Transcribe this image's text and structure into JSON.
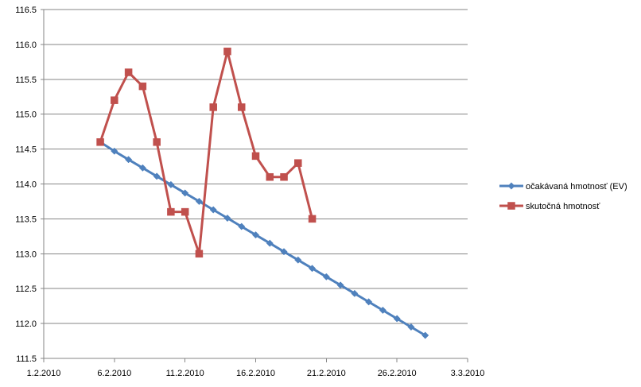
{
  "chart_data": {
    "type": "line",
    "title": "",
    "xlabel": "",
    "ylabel": "",
    "grid": true,
    "legend_position": "right",
    "x_ticks": [
      "1.2.2010",
      "6.2.2010",
      "11.2.2010",
      "16.2.2010",
      "21.2.2010",
      "26.2.2010",
      "3.3.2010"
    ],
    "y_ticks": [
      "111.5",
      "112.0",
      "112.5",
      "113.0",
      "113.5",
      "114.0",
      "114.5",
      "115.0",
      "115.5",
      "116.0",
      "116.5"
    ],
    "xlim": [
      "2010-02-01",
      "2010-03-03"
    ],
    "ylim": [
      111.5,
      116.5
    ],
    "series": [
      {
        "name": "očakávaná hmotnosť (EV)",
        "color": "#4f81bd",
        "marker": "diamond",
        "points": [
          [
            "2010-02-05",
            114.6
          ],
          [
            "2010-02-06",
            114.47
          ],
          [
            "2010-02-07",
            114.35
          ],
          [
            "2010-02-08",
            114.23
          ],
          [
            "2010-02-09",
            114.11
          ],
          [
            "2010-02-10",
            113.99
          ],
          [
            "2010-02-11",
            113.87
          ],
          [
            "2010-02-12",
            113.75
          ],
          [
            "2010-02-13",
            113.63
          ],
          [
            "2010-02-14",
            113.51
          ],
          [
            "2010-02-15",
            113.39
          ],
          [
            "2010-02-16",
            113.27
          ],
          [
            "2010-02-17",
            113.15
          ],
          [
            "2010-02-18",
            113.03
          ],
          [
            "2010-02-19",
            112.91
          ],
          [
            "2010-02-20",
            112.79
          ],
          [
            "2010-02-21",
            112.67
          ],
          [
            "2010-02-22",
            112.55
          ],
          [
            "2010-02-23",
            112.43
          ],
          [
            "2010-02-24",
            112.31
          ],
          [
            "2010-02-25",
            112.19
          ],
          [
            "2010-02-26",
            112.07
          ],
          [
            "2010-02-27",
            111.95
          ],
          [
            "2010-02-28",
            111.83
          ]
        ]
      },
      {
        "name": "skutočná hmotnosť",
        "color": "#c0504d",
        "marker": "square",
        "points": [
          [
            "2010-02-05",
            114.6
          ],
          [
            "2010-02-06",
            115.2
          ],
          [
            "2010-02-07",
            115.6
          ],
          [
            "2010-02-08",
            115.4
          ],
          [
            "2010-02-09",
            114.6
          ],
          [
            "2010-02-10",
            113.6
          ],
          [
            "2010-02-11",
            113.6
          ],
          [
            "2010-02-12",
            113.0
          ],
          [
            "2010-02-13",
            115.1
          ],
          [
            "2010-02-14",
            115.9
          ],
          [
            "2010-02-15",
            115.1
          ],
          [
            "2010-02-16",
            114.4
          ],
          [
            "2010-02-17",
            114.1
          ],
          [
            "2010-02-18",
            114.1
          ],
          [
            "2010-02-19",
            114.3
          ],
          [
            "2010-02-20",
            113.5
          ]
        ]
      }
    ]
  }
}
